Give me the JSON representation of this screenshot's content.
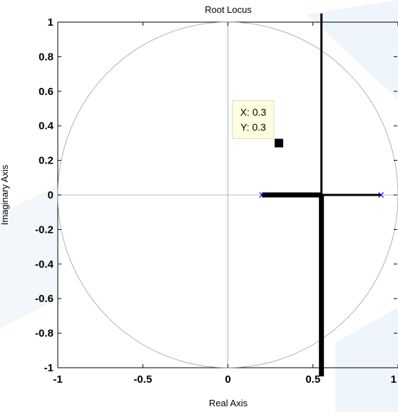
{
  "chart_data": {
    "type": "line",
    "title": "Root Locus",
    "xlabel": "Real Axis",
    "ylabel": "Imaginary Axis",
    "xlim": [
      -1,
      1
    ],
    "ylim": [
      -1,
      1
    ],
    "xticks": [
      -1,
      -0.5,
      0,
      0.5,
      1
    ],
    "xtick_labels": [
      "-1",
      "-0.5",
      "0",
      "0.5",
      "1"
    ],
    "yticks": [
      1,
      0.8,
      0.6,
      0.4,
      0.2,
      0,
      -0.2,
      -0.4,
      -0.6,
      -0.8,
      -1
    ],
    "ytick_labels": [
      "1",
      "0.8",
      "0.6",
      "0.4",
      "0.2",
      "0",
      "-0.2",
      "-0.4",
      "-0.6",
      "-0.8",
      "-1"
    ],
    "grid": false,
    "unit_circle": {
      "center": [
        0,
        0
      ],
      "radius": 1,
      "color": "#a0a0a0"
    },
    "poles": [
      {
        "x": 0.2,
        "y": 0
      },
      {
        "x": 0.9,
        "y": 0
      }
    ],
    "series": [
      {
        "points": [
          [
            0.2,
            0
          ],
          [
            0.55,
            0
          ]
        ],
        "color": "#000000",
        "weight": "heavy"
      },
      {
        "points": [
          [
            0.55,
            0
          ],
          [
            0.9,
            0
          ]
        ],
        "color": "#000000",
        "weight": "medium"
      },
      {
        "points": [
          [
            0.55,
            0
          ],
          [
            0.55,
            -1.05
          ]
        ],
        "color": "#000000",
        "weight": "heavy"
      },
      {
        "points": [
          [
            0.55,
            0
          ],
          [
            0.55,
            1.05
          ]
        ],
        "color": "#000000",
        "weight": "medium"
      }
    ],
    "datatip": {
      "x": 0.3,
      "y": 0.3,
      "x_label": "X: 0.3",
      "y_label": "Y: 0.3"
    },
    "colors": {
      "locus": "#000000",
      "pole_marker": "#0000cc",
      "reference_lines": "#a0a0a0",
      "datatip_bg": "#ffffe1"
    }
  }
}
